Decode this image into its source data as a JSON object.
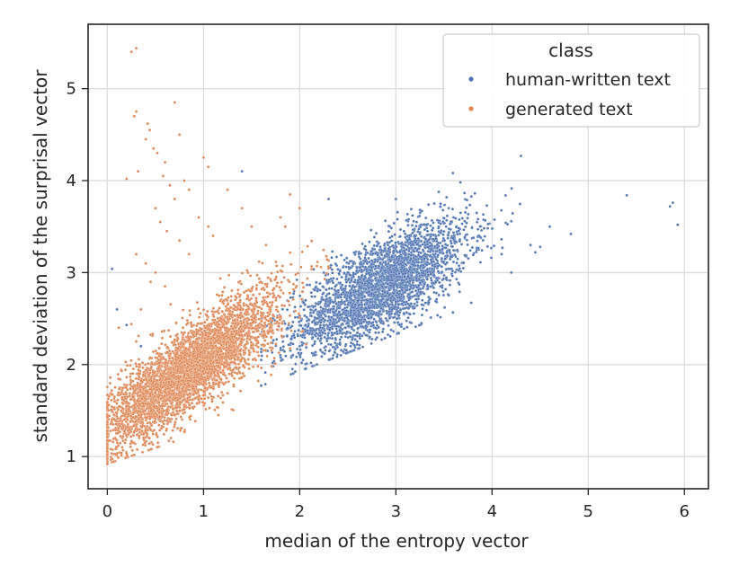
{
  "chart_data": {
    "type": "scatter",
    "title": "",
    "xlabel": "median of the entropy vector",
    "ylabel": "standard deviation of the surprisal vector",
    "xlim": [
      -0.2,
      6.25
    ],
    "ylim": [
      0.65,
      5.7
    ],
    "xticks": [
      0,
      1,
      2,
      3,
      4,
      5,
      6
    ],
    "yticks": [
      1,
      2,
      3,
      4,
      5
    ],
    "grid": true,
    "legend": {
      "title": "class",
      "placement": "top-right",
      "entries": [
        "human-written text",
        "generated text"
      ]
    },
    "series": [
      {
        "name": "human-written text",
        "color": "#4c72b0",
        "cluster": {
          "x_mean": 2.85,
          "x_sd": 0.45,
          "y_mean": 2.85,
          "y_sd": 0.32,
          "slope": 0.55,
          "count": 3200
        },
        "points": [
          [
            5.4,
            3.84
          ],
          [
            5.85,
            3.72
          ],
          [
            5.88,
            3.76
          ],
          [
            5.93,
            3.52
          ],
          [
            4.82,
            3.42
          ],
          [
            4.5,
            3.28
          ],
          [
            4.45,
            3.22
          ],
          [
            4.6,
            3.5
          ],
          [
            4.4,
            3.3
          ],
          [
            4.2,
            3.0
          ],
          [
            4.1,
            3.2
          ],
          [
            1.4,
            4.1
          ],
          [
            0.05,
            3.04
          ],
          [
            0.1,
            2.6
          ],
          [
            0.2,
            2.43
          ],
          [
            0.35,
            2.2
          ],
          [
            2.3,
            3.8
          ],
          [
            3.0,
            3.8
          ],
          [
            3.4,
            3.75
          ]
        ]
      },
      {
        "name": "generated text",
        "color": "#dd8452",
        "cluster": {
          "x_mean": 0.85,
          "x_sd": 0.45,
          "y_mean": 1.95,
          "y_sd": 0.3,
          "slope": 0.75,
          "count": 4200
        },
        "points": [
          [
            0.25,
            5.4
          ],
          [
            0.3,
            5.44
          ],
          [
            0.3,
            4.75
          ],
          [
            0.28,
            4.7
          ],
          [
            0.42,
            4.62
          ],
          [
            0.44,
            4.55
          ],
          [
            0.4,
            4.45
          ],
          [
            0.48,
            4.35
          ],
          [
            0.52,
            4.3
          ],
          [
            0.7,
            4.85
          ],
          [
            0.75,
            4.5
          ],
          [
            0.2,
            4.02
          ],
          [
            0.32,
            4.1
          ],
          [
            0.58,
            4.05
          ],
          [
            0.6,
            4.2
          ],
          [
            0.65,
            3.95
          ],
          [
            0.7,
            3.8
          ],
          [
            0.8,
            4.0
          ],
          [
            0.85,
            3.9
          ],
          [
            1.0,
            4.25
          ],
          [
            1.05,
            4.15
          ],
          [
            0.95,
            3.6
          ],
          [
            1.05,
            3.5
          ],
          [
            1.1,
            3.4
          ],
          [
            0.5,
            3.7
          ],
          [
            0.55,
            3.55
          ],
          [
            0.62,
            3.45
          ],
          [
            0.75,
            3.35
          ],
          [
            0.85,
            3.2
          ],
          [
            1.25,
            3.9
          ],
          [
            1.4,
            3.7
          ],
          [
            1.5,
            3.5
          ],
          [
            1.65,
            3.3
          ],
          [
            1.8,
            3.6
          ],
          [
            1.85,
            3.5
          ],
          [
            1.9,
            3.85
          ],
          [
            2.0,
            3.7
          ],
          [
            0.3,
            3.2
          ],
          [
            0.4,
            3.1
          ],
          [
            0.5,
            3.0
          ],
          [
            0.25,
            2.44
          ],
          [
            0.12,
            2.4
          ],
          [
            0.35,
            2.6
          ],
          [
            0.45,
            2.9
          ],
          [
            0.6,
            2.85
          ]
        ]
      }
    ]
  }
}
